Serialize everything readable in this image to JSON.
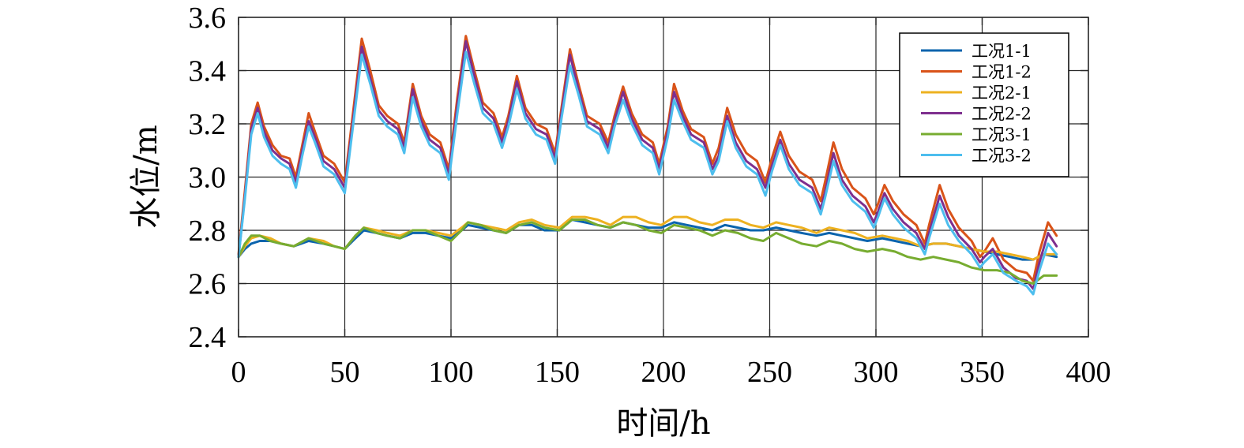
{
  "chart_data": {
    "type": "line",
    "xlabel": "时间/h",
    "ylabel": "水位/m",
    "xlim": [
      0,
      400
    ],
    "ylim": [
      2.4,
      3.6
    ],
    "xticks": [
      "0",
      "50",
      "100",
      "150",
      "200",
      "250",
      "300",
      "350",
      "400"
    ],
    "yticks": [
      "2.4",
      "2.6",
      "2.8",
      "3.0",
      "3.2",
      "3.4",
      "3.6"
    ],
    "grid": true,
    "legend_position": "top-right",
    "series": [
      {
        "name": "工况1-1",
        "color": "#0b64ad",
        "x": [
          0,
          3,
          6,
          10,
          15,
          20,
          26,
          33,
          40,
          45,
          50,
          55,
          59,
          65,
          70,
          76,
          82,
          88,
          94,
          100,
          105,
          108,
          114,
          120,
          126,
          132,
          138,
          144,
          151,
          157,
          163,
          169,
          175,
          181,
          187,
          193,
          199,
          205,
          211,
          217,
          223,
          229,
          235,
          241,
          247,
          253,
          259,
          265,
          272,
          278,
          284,
          290,
          296,
          303,
          309,
          315,
          321,
          327,
          333,
          339,
          345,
          351,
          357,
          363,
          369,
          374,
          379,
          385
        ],
        "y": [
          2.7,
          2.73,
          2.75,
          2.76,
          2.76,
          2.75,
          2.74,
          2.76,
          2.75,
          2.74,
          2.73,
          2.77,
          2.8,
          2.79,
          2.78,
          2.77,
          2.79,
          2.79,
          2.78,
          2.77,
          2.8,
          2.82,
          2.81,
          2.8,
          2.79,
          2.82,
          2.82,
          2.8,
          2.8,
          2.84,
          2.83,
          2.82,
          2.81,
          2.83,
          2.82,
          2.81,
          2.81,
          2.83,
          2.82,
          2.81,
          2.8,
          2.82,
          2.81,
          2.8,
          2.8,
          2.81,
          2.8,
          2.79,
          2.78,
          2.79,
          2.78,
          2.77,
          2.76,
          2.77,
          2.76,
          2.75,
          2.74,
          2.75,
          2.75,
          2.74,
          2.73,
          2.72,
          2.71,
          2.7,
          2.69,
          2.69,
          2.71,
          2.7
        ]
      },
      {
        "name": "工况1-2",
        "color": "#d95319",
        "x": [
          0,
          3,
          6,
          9,
          12,
          16,
          20,
          24,
          27,
          30,
          33,
          36,
          40,
          45,
          50,
          54,
          58,
          62,
          66,
          70,
          75,
          78,
          82,
          86,
          90,
          95,
          99,
          103,
          107,
          111,
          115,
          120,
          124,
          127,
          131,
          135,
          140,
          145,
          149,
          152,
          156,
          160,
          164,
          170,
          174,
          177,
          181,
          185,
          190,
          195,
          198,
          202,
          205,
          209,
          213,
          219,
          223,
          226,
          230,
          234,
          239,
          244,
          248,
          251,
          255,
          259,
          264,
          270,
          274,
          276,
          280,
          284,
          289,
          295,
          299,
          301,
          304,
          308,
          313,
          319,
          323,
          325,
          330,
          334,
          339,
          345,
          349,
          351,
          355,
          360,
          366,
          371,
          374,
          377,
          381,
          385
        ],
        "y": [
          2.71,
          2.95,
          3.2,
          3.28,
          3.19,
          3.12,
          3.08,
          3.07,
          3.0,
          3.12,
          3.24,
          3.17,
          3.08,
          3.05,
          2.98,
          3.25,
          3.52,
          3.4,
          3.27,
          3.23,
          3.2,
          3.13,
          3.35,
          3.23,
          3.16,
          3.13,
          3.03,
          3.3,
          3.53,
          3.4,
          3.28,
          3.24,
          3.15,
          3.23,
          3.38,
          3.26,
          3.2,
          3.18,
          3.09,
          3.26,
          3.48,
          3.35,
          3.23,
          3.2,
          3.13,
          3.23,
          3.34,
          3.24,
          3.16,
          3.13,
          3.05,
          3.19,
          3.35,
          3.25,
          3.18,
          3.15,
          3.05,
          3.11,
          3.26,
          3.16,
          3.09,
          3.06,
          2.98,
          3.07,
          3.17,
          3.08,
          3.02,
          2.99,
          2.91,
          2.98,
          3.13,
          3.03,
          2.96,
          2.92,
          2.86,
          2.9,
          2.97,
          2.91,
          2.86,
          2.82,
          2.75,
          2.82,
          2.97,
          2.88,
          2.81,
          2.76,
          2.7,
          2.72,
          2.77,
          2.69,
          2.65,
          2.64,
          2.61,
          2.72,
          2.83,
          2.78
        ]
      },
      {
        "name": "工况2-1",
        "color": "#edb120",
        "x": [
          0,
          3,
          6,
          10,
          15,
          20,
          26,
          33,
          40,
          45,
          50,
          55,
          59,
          65,
          70,
          76,
          82,
          88,
          94,
          100,
          105,
          108,
          114,
          120,
          126,
          132,
          138,
          144,
          151,
          157,
          163,
          169,
          175,
          181,
          187,
          193,
          199,
          205,
          211,
          217,
          223,
          229,
          235,
          241,
          247,
          253,
          259,
          265,
          272,
          278,
          284,
          290,
          296,
          303,
          309,
          315,
          321,
          327,
          333,
          339,
          345,
          351,
          357,
          363,
          369,
          374,
          379,
          385
        ],
        "y": [
          2.7,
          2.74,
          2.77,
          2.78,
          2.77,
          2.75,
          2.74,
          2.77,
          2.76,
          2.74,
          2.73,
          2.78,
          2.81,
          2.8,
          2.79,
          2.78,
          2.8,
          2.8,
          2.79,
          2.78,
          2.81,
          2.83,
          2.82,
          2.81,
          2.8,
          2.83,
          2.84,
          2.82,
          2.81,
          2.85,
          2.85,
          2.84,
          2.82,
          2.85,
          2.85,
          2.83,
          2.82,
          2.85,
          2.85,
          2.83,
          2.82,
          2.84,
          2.84,
          2.82,
          2.81,
          2.83,
          2.82,
          2.81,
          2.79,
          2.81,
          2.8,
          2.79,
          2.77,
          2.78,
          2.77,
          2.76,
          2.74,
          2.75,
          2.75,
          2.74,
          2.73,
          2.72,
          2.72,
          2.71,
          2.7,
          2.69,
          2.71,
          2.71
        ]
      },
      {
        "name": "工况2-2",
        "color": "#7e2f8e",
        "x": [
          0,
          3,
          6,
          9,
          12,
          16,
          20,
          24,
          27,
          30,
          33,
          36,
          40,
          45,
          50,
          54,
          58,
          62,
          66,
          70,
          75,
          78,
          82,
          86,
          90,
          95,
          99,
          103,
          107,
          111,
          115,
          120,
          124,
          127,
          131,
          135,
          140,
          145,
          149,
          152,
          156,
          160,
          164,
          170,
          174,
          177,
          181,
          185,
          190,
          195,
          198,
          202,
          205,
          209,
          213,
          219,
          223,
          226,
          230,
          234,
          239,
          244,
          248,
          251,
          255,
          259,
          264,
          270,
          274,
          276,
          280,
          284,
          289,
          295,
          299,
          301,
          304,
          308,
          313,
          319,
          323,
          325,
          330,
          334,
          339,
          345,
          349,
          351,
          355,
          360,
          366,
          371,
          374,
          377,
          381,
          385
        ],
        "y": [
          2.7,
          2.93,
          3.18,
          3.26,
          3.17,
          3.1,
          3.07,
          3.05,
          2.98,
          3.1,
          3.21,
          3.15,
          3.06,
          3.03,
          2.96,
          3.22,
          3.49,
          3.37,
          3.25,
          3.21,
          3.18,
          3.11,
          3.33,
          3.21,
          3.14,
          3.11,
          3.01,
          3.27,
          3.51,
          3.38,
          3.26,
          3.22,
          3.13,
          3.21,
          3.36,
          3.24,
          3.18,
          3.16,
          3.07,
          3.24,
          3.46,
          3.33,
          3.21,
          3.18,
          3.11,
          3.21,
          3.32,
          3.22,
          3.14,
          3.11,
          3.03,
          3.17,
          3.32,
          3.23,
          3.16,
          3.13,
          3.03,
          3.08,
          3.23,
          3.13,
          3.06,
          3.03,
          2.96,
          3.04,
          3.14,
          3.05,
          2.99,
          2.96,
          2.88,
          2.94,
          3.09,
          2.99,
          2.93,
          2.89,
          2.83,
          2.87,
          2.94,
          2.88,
          2.83,
          2.79,
          2.73,
          2.79,
          2.93,
          2.85,
          2.78,
          2.73,
          2.68,
          2.7,
          2.73,
          2.66,
          2.62,
          2.61,
          2.58,
          2.68,
          2.79,
          2.74
        ]
      },
      {
        "name": "工况3-1",
        "color": "#77ac30",
        "x": [
          0,
          3,
          6,
          10,
          15,
          20,
          26,
          33,
          40,
          45,
          50,
          55,
          59,
          65,
          70,
          76,
          82,
          88,
          94,
          100,
          105,
          108,
          114,
          120,
          126,
          132,
          138,
          144,
          151,
          157,
          163,
          169,
          175,
          181,
          187,
          193,
          199,
          205,
          211,
          217,
          223,
          229,
          235,
          241,
          247,
          253,
          259,
          265,
          272,
          278,
          284,
          290,
          296,
          303,
          309,
          315,
          321,
          327,
          333,
          339,
          345,
          351,
          357,
          363,
          369,
          374,
          379,
          385
        ],
        "y": [
          2.7,
          2.75,
          2.78,
          2.78,
          2.76,
          2.75,
          2.74,
          2.77,
          2.75,
          2.74,
          2.73,
          2.78,
          2.81,
          2.79,
          2.78,
          2.77,
          2.8,
          2.8,
          2.78,
          2.76,
          2.8,
          2.83,
          2.82,
          2.8,
          2.79,
          2.82,
          2.83,
          2.81,
          2.8,
          2.84,
          2.84,
          2.82,
          2.81,
          2.83,
          2.82,
          2.8,
          2.79,
          2.82,
          2.81,
          2.8,
          2.78,
          2.8,
          2.79,
          2.77,
          2.76,
          2.79,
          2.77,
          2.75,
          2.74,
          2.76,
          2.75,
          2.73,
          2.72,
          2.73,
          2.72,
          2.7,
          2.69,
          2.7,
          2.69,
          2.68,
          2.66,
          2.65,
          2.65,
          2.64,
          2.61,
          2.6,
          2.63,
          2.63
        ]
      },
      {
        "name": "工况3-2",
        "color": "#4dbeee",
        "x": [
          0,
          3,
          6,
          9,
          12,
          16,
          20,
          24,
          27,
          30,
          33,
          36,
          40,
          45,
          50,
          54,
          58,
          62,
          66,
          70,
          75,
          78,
          82,
          86,
          90,
          95,
          99,
          103,
          107,
          111,
          115,
          120,
          124,
          127,
          131,
          135,
          140,
          145,
          149,
          152,
          156,
          160,
          164,
          170,
          174,
          177,
          181,
          185,
          190,
          195,
          198,
          202,
          205,
          209,
          213,
          219,
          223,
          226,
          230,
          234,
          239,
          244,
          248,
          251,
          255,
          259,
          264,
          270,
          274,
          276,
          280,
          284,
          289,
          295,
          299,
          301,
          304,
          308,
          313,
          319,
          323,
          325,
          330,
          334,
          339,
          345,
          349,
          351,
          355,
          360,
          366,
          371,
          374,
          377,
          381,
          385
        ],
        "y": [
          2.7,
          2.92,
          3.16,
          3.24,
          3.15,
          3.08,
          3.05,
          3.03,
          2.96,
          3.08,
          3.19,
          3.13,
          3.04,
          3.01,
          2.94,
          3.2,
          3.46,
          3.35,
          3.23,
          3.19,
          3.16,
          3.09,
          3.3,
          3.19,
          3.12,
          3.09,
          2.99,
          3.24,
          3.47,
          3.35,
          3.24,
          3.2,
          3.11,
          3.19,
          3.33,
          3.22,
          3.16,
          3.14,
          3.05,
          3.22,
          3.42,
          3.31,
          3.19,
          3.16,
          3.09,
          3.19,
          3.29,
          3.2,
          3.12,
          3.09,
          3.01,
          3.15,
          3.29,
          3.21,
          3.14,
          3.11,
          3.01,
          3.06,
          3.21,
          3.11,
          3.04,
          3.01,
          2.93,
          3.02,
          3.12,
          3.03,
          2.97,
          2.94,
          2.86,
          2.92,
          3.06,
          2.97,
          2.91,
          2.87,
          2.81,
          2.85,
          2.92,
          2.86,
          2.81,
          2.77,
          2.71,
          2.77,
          2.9,
          2.82,
          2.76,
          2.71,
          2.66,
          2.68,
          2.71,
          2.64,
          2.61,
          2.59,
          2.56,
          2.65,
          2.75,
          2.71
        ]
      }
    ]
  }
}
